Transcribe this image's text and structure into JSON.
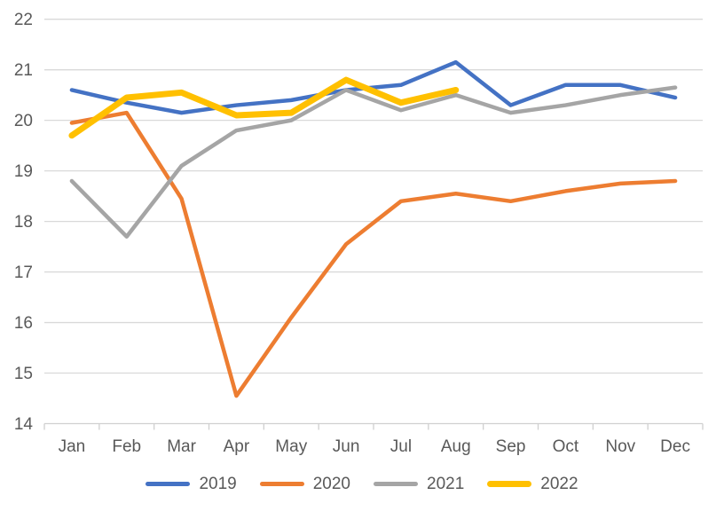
{
  "chart_data": {
    "type": "line",
    "title": "",
    "categories": [
      "Jan",
      "Feb",
      "Mar",
      "Apr",
      "May",
      "Jun",
      "Jul",
      "Aug",
      "Sep",
      "Oct",
      "Nov",
      "Dec"
    ],
    "series": [
      {
        "name": "2019",
        "color": "#4472C4",
        "stroke_width": 4.5,
        "values": [
          20.6,
          20.35,
          20.15,
          20.3,
          20.4,
          20.6,
          20.7,
          21.15,
          20.3,
          20.7,
          20.7,
          20.45
        ]
      },
      {
        "name": "2020",
        "color": "#ED7D31",
        "stroke_width": 4.5,
        "values": [
          19.95,
          20.15,
          18.45,
          14.55,
          16.1,
          17.55,
          18.4,
          18.55,
          18.4,
          18.6,
          18.75,
          18.8
        ]
      },
      {
        "name": "2021",
        "color": "#A5A5A5",
        "stroke_width": 4.5,
        "values": [
          18.8,
          17.7,
          19.1,
          19.8,
          20.0,
          20.6,
          20.2,
          20.5,
          20.15,
          20.3,
          20.5,
          20.65
        ]
      },
      {
        "name": "2022",
        "color": "#FFC000",
        "stroke_width": 7,
        "values": [
          19.7,
          20.45,
          20.55,
          20.1,
          20.15,
          20.8,
          20.35,
          20.6
        ]
      }
    ],
    "xlabel": "",
    "ylabel": "",
    "ylim": [
      14,
      22
    ],
    "y_ticks": [
      22,
      21,
      20,
      19,
      18,
      17,
      16,
      15,
      14
    ],
    "grid": true,
    "legend_position": "bottom",
    "gridline_color": "#D9D9D9",
    "axis_color": "#D0D0D0",
    "label_color": "#595959"
  }
}
